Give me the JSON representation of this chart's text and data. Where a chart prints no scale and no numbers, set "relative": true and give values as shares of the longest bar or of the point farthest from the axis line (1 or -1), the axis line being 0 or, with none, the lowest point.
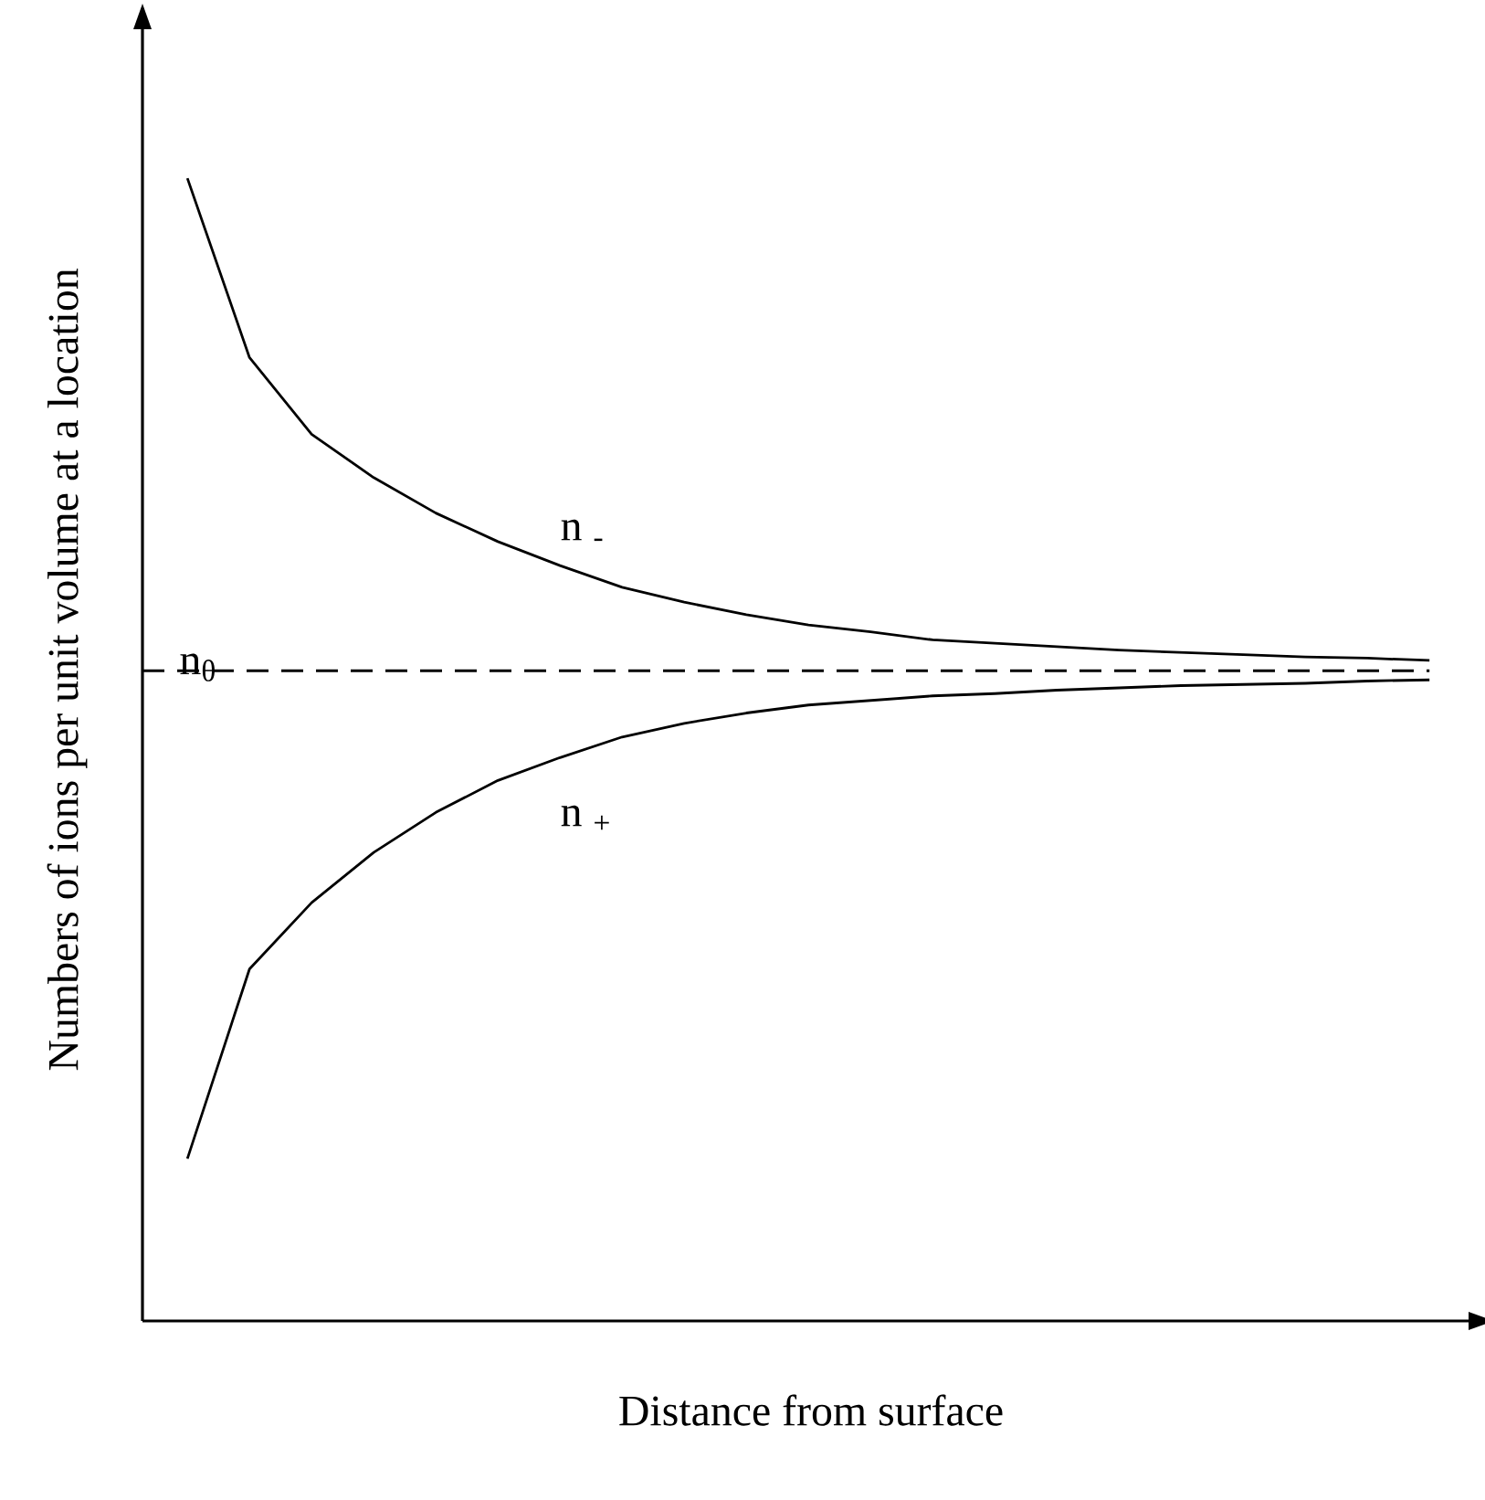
{
  "chart_data": {
    "type": "line",
    "relative": true,
    "xlabel": "Distance from surface",
    "ylabel": "Numbers of ions per unit volume at a location",
    "categories": [
      null,
      null,
      null,
      null,
      null,
      null,
      null,
      null,
      null,
      null,
      null,
      null,
      null,
      null,
      null,
      null,
      null,
      null,
      null,
      null,
      null
    ],
    "series": [
      {
        "name": "n $_{-}$",
        "color": "#000000",
        "values": [
          1.0,
          0.843,
          0.776,
          0.738,
          0.707,
          0.682,
          0.661,
          0.642,
          0.629,
          0.618,
          0.609,
          0.603,
          0.596,
          0.593,
          0.59,
          0.587,
          0.585,
          0.583,
          0.581,
          0.58,
          0.578
        ]
      },
      {
        "name": "n $_{+}$",
        "color": "#000000",
        "values": [
          0.142,
          0.308,
          0.366,
          0.41,
          0.445,
          0.473,
          0.493,
          0.511,
          0.523,
          0.532,
          0.539,
          0.543,
          0.547,
          0.549,
          0.552,
          0.554,
          0.556,
          0.557,
          0.558,
          0.56,
          0.561
        ]
      }
    ],
    "ref_lines": [
      {
        "axis": "y",
        "value": 0.569,
        "label": "n$_{θ}$",
        "line_style": "dashed",
        "color": "#000000"
      }
    ]
  }
}
